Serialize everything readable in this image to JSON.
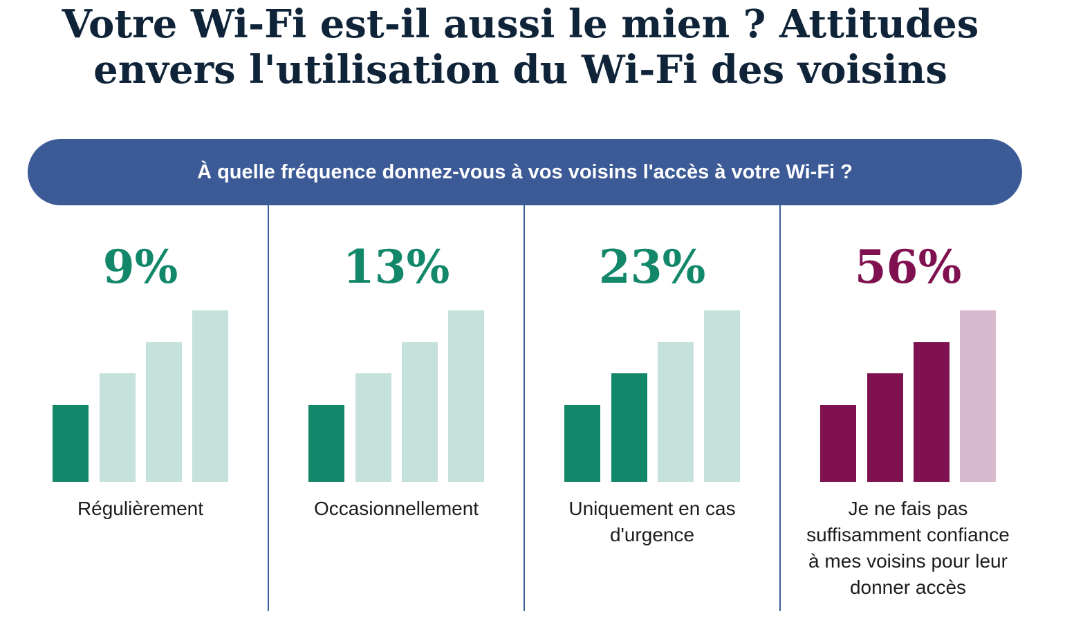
{
  "title": {
    "line1": "Votre Wi-Fi est-il aussi le mien ? Attitudes",
    "line2": "envers l'utilisation du Wi-Fi des voisins"
  },
  "question": "À quelle fréquence donnez-vous à vos voisins l'accès à votre Wi-Fi ?",
  "colors": {
    "banner": "#3b5a96",
    "green": "#13876a",
    "green_light": "#c5e1db",
    "purple": "#7f1150",
    "purple_light": "#d9b9cd"
  },
  "chart_data": {
    "type": "bar",
    "title": "À quelle fréquence donnez-vous à vos voisins l'accès à votre Wi-Fi ?",
    "categories": [
      "Régulièrement",
      "Occasionnellement",
      "Uniquement en cas d'urgence",
      "Je ne fais pas suffisamment confiance à mes voisins pour leur donner accès"
    ],
    "values": [
      9,
      13,
      23,
      56
    ],
    "value_labels": [
      "9%",
      "13%",
      "23%",
      "56%"
    ],
    "unit": "%",
    "icon_levels_filled": [
      1,
      1,
      2,
      3
    ],
    "icon_levels_total": 4,
    "accent": [
      "green",
      "green",
      "green",
      "purple"
    ]
  },
  "panels": [
    {
      "pct": "9%",
      "label_lines": [
        "Régulièrement"
      ]
    },
    {
      "pct": "13%",
      "label_lines": [
        "Occasionnellement"
      ]
    },
    {
      "pct": "23%",
      "label_lines": [
        "Uniquement en cas",
        "d'urgence"
      ]
    },
    {
      "pct": "56%",
      "label_lines": [
        "Je ne fais pas",
        "suffisamment confiance",
        "à mes voisins pour leur",
        "donner accès"
      ]
    }
  ]
}
